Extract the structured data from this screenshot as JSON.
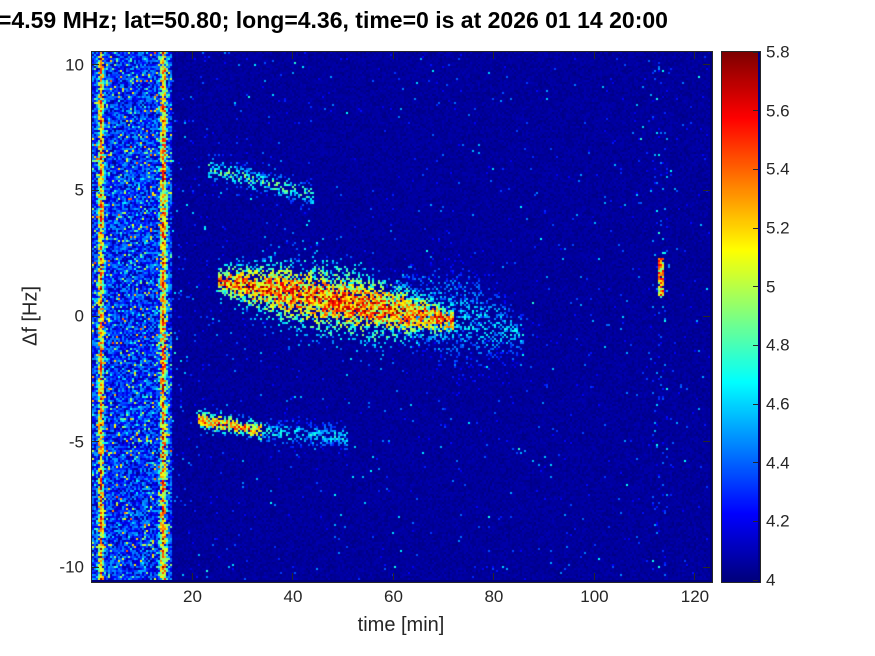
{
  "chart_data": {
    "type": "heatmap",
    "title": "=4.59 MHz;  lat=50.80; long=4.36, time=0 is at 2026 01 14 20:00",
    "xlabel": "time [min]",
    "ylabel": "Δf [Hz]",
    "xlim": [
      0,
      123
    ],
    "ylim": [
      -10.5,
      10.5
    ],
    "x_ticks": [
      20,
      40,
      60,
      80,
      100,
      120
    ],
    "x_tick_labels": [
      "20",
      "40",
      "60",
      "80",
      "100",
      "120"
    ],
    "y_ticks": [
      -10,
      -5,
      0,
      5,
      10
    ],
    "y_tick_labels": [
      "-10",
      "-5",
      "0",
      "5",
      "10"
    ],
    "grid": false,
    "legend": "none",
    "colorbar": {
      "min": 4,
      "max": 5.8,
      "ticks": [
        4,
        4.2,
        4.4,
        4.6,
        4.8,
        5,
        5.2,
        5.4,
        5.6,
        5.8
      ],
      "tick_labels": [
        "4",
        "4.2",
        "4.4",
        "4.6",
        "4.8",
        "5",
        "5.2",
        "5.4",
        "5.6",
        "5.8"
      ],
      "colormap": "jet",
      "position": "right"
    },
    "background_level": 4.02,
    "noise_band": {
      "x0": 0,
      "x1": 16,
      "red_columns": [
        {
          "x": 1.8,
          "w": 1.1
        },
        {
          "x": 14.2,
          "w": 1.3
        }
      ]
    },
    "speckle": {
      "base_probability": 0.012,
      "enhanced_columns": [
        {
          "x": 113,
          "w": 1.5,
          "probability": 0.05
        }
      ],
      "extra_after_band": {
        "x0": 16,
        "x1": 30,
        "probability": 0.025
      }
    },
    "traces": [
      {
        "name": "main-doppler-trace",
        "x0": 25,
        "x1": 72,
        "f0": 1.4,
        "f1": -0.2,
        "w": 0.55,
        "vmax": 5.8,
        "density": 0.95,
        "bulge": true
      },
      {
        "name": "main-trace-tail",
        "x0": 58,
        "x1": 86,
        "f0": 0.6,
        "f1": -0.7,
        "w": 0.8,
        "vmax": 4.75,
        "density": 0.4,
        "bulge": true
      },
      {
        "name": "upper-faint-trace",
        "x0": 23,
        "x1": 44,
        "f0": 5.9,
        "f1": 4.8,
        "w": 0.28,
        "vmax": 5.0,
        "density": 0.5,
        "bulge": false
      },
      {
        "name": "lower-trace-strong",
        "x0": 21,
        "x1": 34,
        "f0": -4.1,
        "f1": -4.6,
        "w": 0.22,
        "vmax": 5.7,
        "density": 0.95,
        "bulge": false
      },
      {
        "name": "lower-trace-faint",
        "x0": 34,
        "x1": 51,
        "f0": -4.6,
        "f1": -4.8,
        "w": 0.3,
        "vmax": 4.8,
        "density": 0.55,
        "bulge": false
      }
    ],
    "bursts": [
      {
        "name": "late-burst",
        "x": 113.2,
        "w": 0.6,
        "f0": 0.8,
        "f1": 2.3,
        "vmax": 5.6,
        "density": 0.9
      }
    ]
  }
}
